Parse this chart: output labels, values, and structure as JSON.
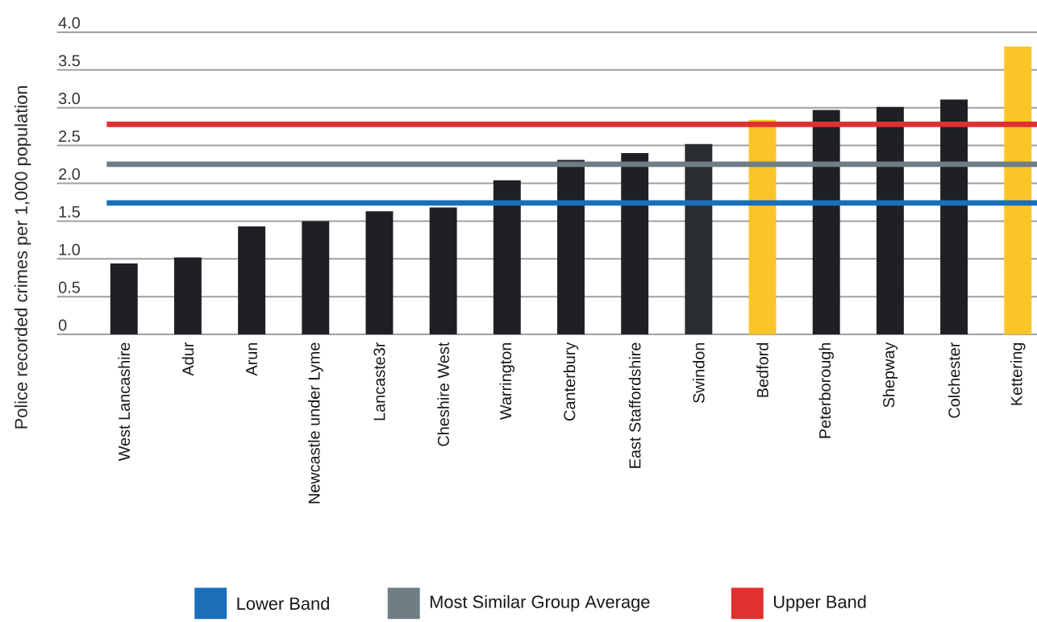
{
  "chart_data": {
    "type": "bar",
    "ylabel": "Police recorded crimes per 1,000 population",
    "categories": [
      "West  Lancashire",
      "Adur",
      "Arun",
      "Newcastle  under Lyme",
      "Lancaste3r",
      "Cheshire West",
      "Warrington",
      "Canterbury",
      "East Staffordshire",
      "Swindon",
      "Bedford",
      "Peterborough",
      "Shepway",
      "Colchester",
      "Kettering"
    ],
    "values": [
      0.94,
      1.02,
      1.43,
      1.5,
      1.63,
      1.68,
      2.04,
      2.31,
      2.4,
      2.52,
      2.84,
      2.97,
      3.01,
      3.11,
      3.81
    ],
    "colors": [
      "#1e2023",
      "#1e2023",
      "#1e2023",
      "#1e2023",
      "#1e2023",
      "#1e2023",
      "#1e2023",
      "#1e2023",
      "#1e2023",
      "#2a2d30",
      "#fbc52a",
      "#1e2023",
      "#1e2023",
      "#1e2023",
      "#fbc52a"
    ],
    "ylim": [
      0,
      4
    ],
    "yticks": [
      {
        "value": 0,
        "label": "0"
      },
      0.5,
      {
        "value": 1,
        "label": "1.0"
      },
      1.5,
      {
        "value": 2,
        "label": "2.0"
      },
      2.5,
      {
        "value": 3,
        "label": "3.0"
      },
      3.5,
      {
        "value": 4,
        "label": "4.0"
      }
    ],
    "grid": "y",
    "legend": "bottom",
    "ref_lines": [
      {
        "axis": "y",
        "value": 1.74,
        "label": "Lower Band",
        "color": "#1a6fb8"
      },
      {
        "axis": "y",
        "value": 2.25,
        "label": "Most Similar Group Average",
        "color": "#6f7d85"
      },
      {
        "axis": "y",
        "value": 2.78,
        "label": "Upper Band",
        "color": "#e03030"
      }
    ]
  }
}
